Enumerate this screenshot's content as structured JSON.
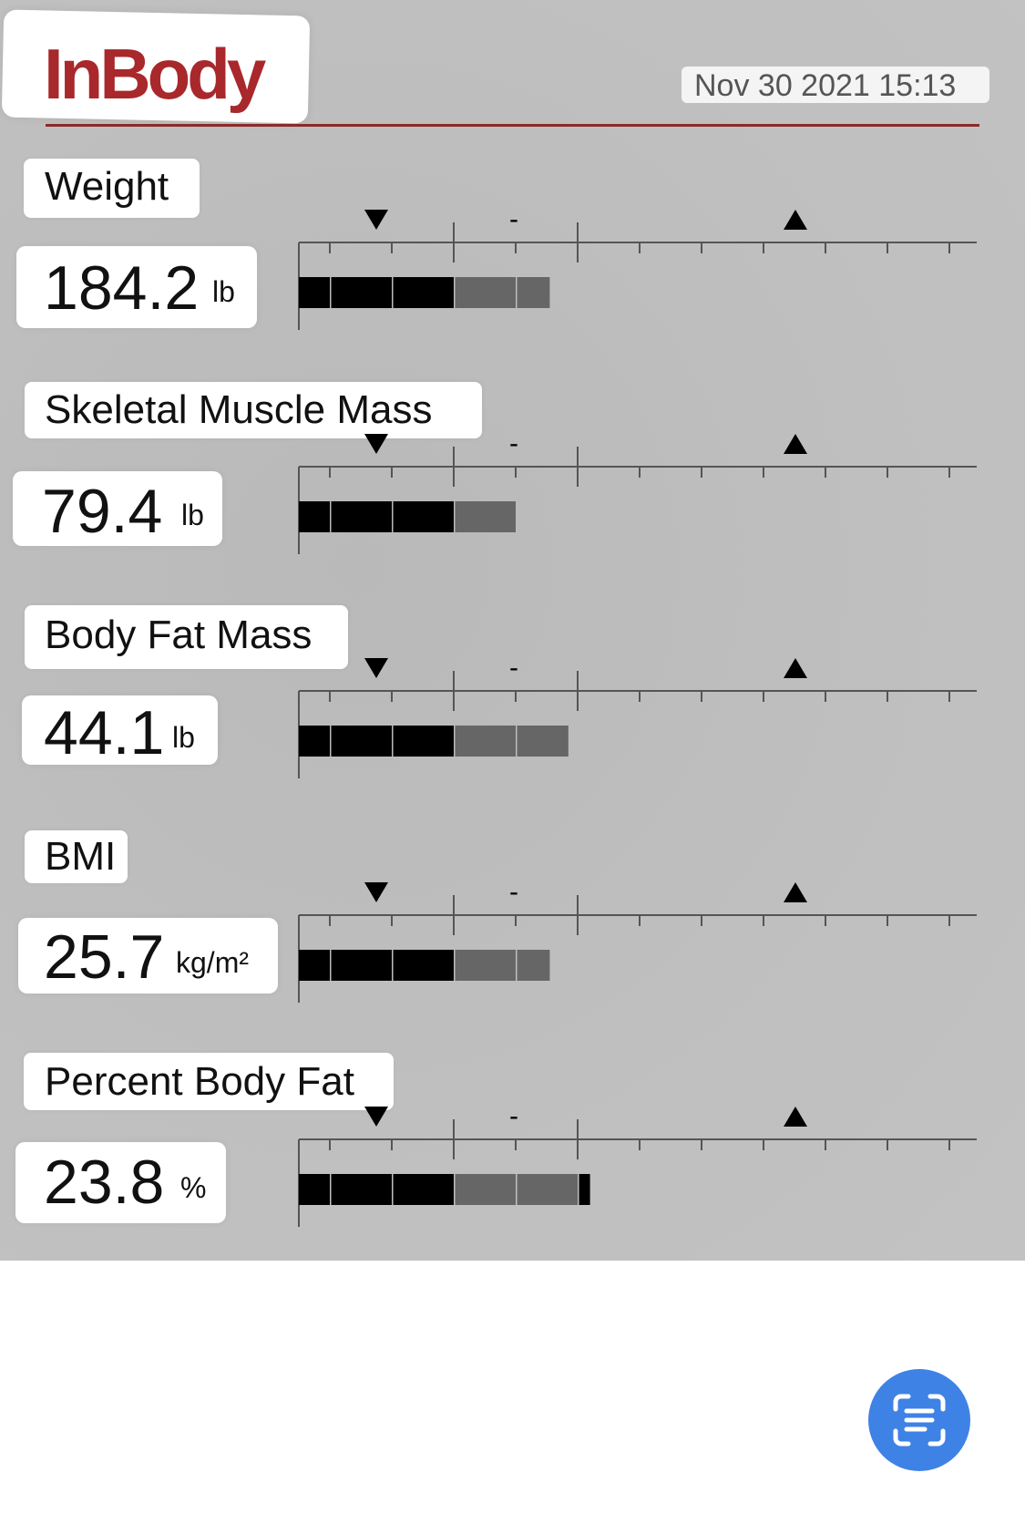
{
  "header": {
    "logo_text": "InBody",
    "brand_color": "#a8282b",
    "datetime": "Nov 30 2021 15:13"
  },
  "metrics": [
    {
      "label": "Weight",
      "value": "184.2",
      "unit": "lb",
      "bar_segments": 4.55,
      "range_marker": "-"
    },
    {
      "label": "Skeletal Muscle Mass",
      "value": "79.4",
      "unit": "lb",
      "bar_segments": 4.0,
      "range_marker": "-"
    },
    {
      "label": "Body Fat Mass",
      "value": "44.1",
      "unit": "lb",
      "bar_segments": 4.85,
      "range_marker": "-"
    },
    {
      "label": "BMI",
      "value": "25.7",
      "unit": "kg/m²",
      "bar_segments": 4.55,
      "range_marker": "-"
    },
    {
      "label": "Percent Body Fat",
      "value": "23.8",
      "unit": "%",
      "bar_segments": 5.2,
      "range_marker": "-"
    }
  ],
  "colors": {
    "bar_low": "#000000",
    "bar_normal": "#666666",
    "bar_high": "#000000",
    "background": "#bdbdbd",
    "scan_button": "#3f82e6"
  },
  "scan_button_icon": "text-scan-icon"
}
